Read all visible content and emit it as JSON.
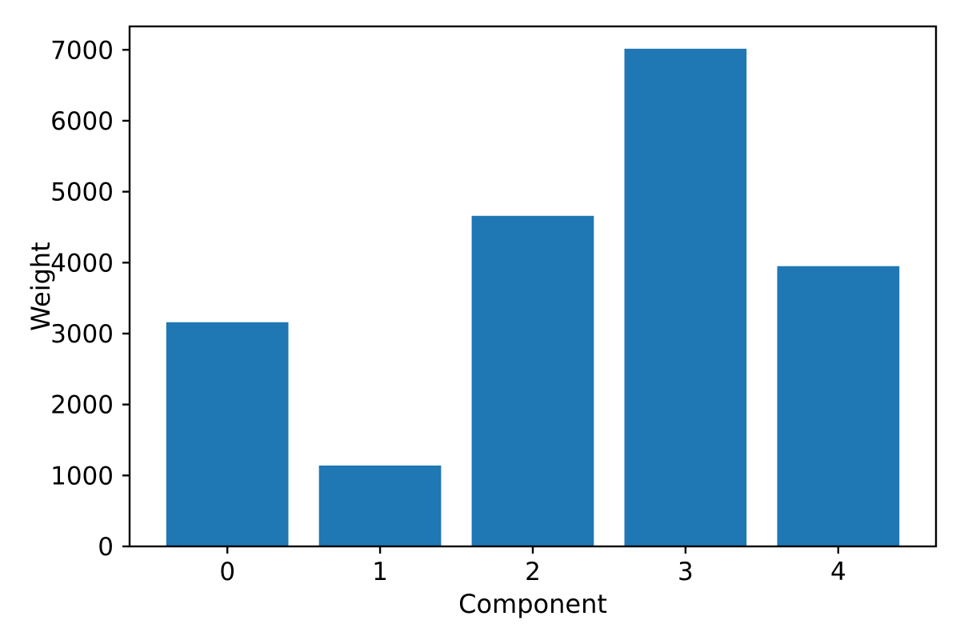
{
  "chart_data": {
    "type": "bar",
    "categories": [
      "0",
      "1",
      "2",
      "3",
      "4"
    ],
    "values": [
      3160,
      1140,
      4660,
      7015,
      3950
    ],
    "title": "",
    "xlabel": "Component",
    "ylabel": "Weight",
    "yticks": [
      0,
      1000,
      2000,
      3000,
      4000,
      5000,
      6000,
      7000
    ],
    "ylim": [
      0,
      7330
    ],
    "xlim": [
      -0.64,
      4.64
    ],
    "bar_width_units": 0.8,
    "grid": false,
    "legend": null,
    "colors": {
      "bar": "#1f77b4",
      "axis": "#000000",
      "text": "#000000",
      "background": "#ffffff"
    }
  }
}
